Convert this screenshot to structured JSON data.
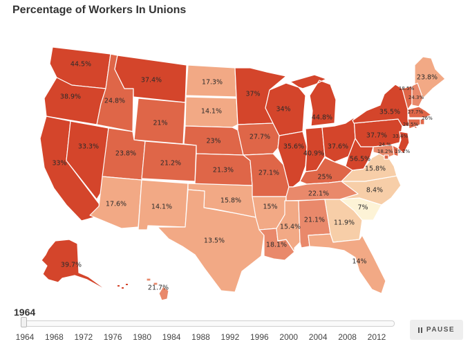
{
  "header": {
    "title": "Percentage of Workers In Unions"
  },
  "slider": {
    "current_year": "1964",
    "selected_fraction": 0,
    "ticks": [
      "1964",
      "1968",
      "1972",
      "1976",
      "1980",
      "1984",
      "1988",
      "1992",
      "1996",
      "2000",
      "2004",
      "2008",
      "2012"
    ]
  },
  "controls": {
    "pause_label": "PAUSE",
    "pause_icon": "pause-icon"
  },
  "legend_colors": {
    "very_high": "#d4452b",
    "high": "#df6648",
    "mid": "#e9896b",
    "low": "#f2a985",
    "very_low": "#f7cea8",
    "lowest": "#fdf3d6"
  },
  "states": [
    {
      "id": "WA",
      "value": "44.5%"
    },
    {
      "id": "OR",
      "value": "38.9%"
    },
    {
      "id": "CA",
      "value": "33%"
    },
    {
      "id": "NV",
      "value": "33.3%"
    },
    {
      "id": "ID",
      "value": "24.8%"
    },
    {
      "id": "MT",
      "value": "37.4%"
    },
    {
      "id": "WY",
      "value": "21%"
    },
    {
      "id": "UT",
      "value": "23.8%"
    },
    {
      "id": "CO",
      "value": "21.2%"
    },
    {
      "id": "AZ",
      "value": "17.6%"
    },
    {
      "id": "NM",
      "value": "14.1%"
    },
    {
      "id": "ND",
      "value": "17.3%"
    },
    {
      "id": "SD",
      "value": "14.1%"
    },
    {
      "id": "NE",
      "value": "23%"
    },
    {
      "id": "KS",
      "value": "21.3%"
    },
    {
      "id": "OK",
      "value": "15.8%"
    },
    {
      "id": "TX",
      "value": "13.5%"
    },
    {
      "id": "MN",
      "value": "37%"
    },
    {
      "id": "IA",
      "value": "27.7%"
    },
    {
      "id": "MO",
      "value": "27.1%"
    },
    {
      "id": "AR",
      "value": "15%"
    },
    {
      "id": "LA",
      "value": "18.1%"
    },
    {
      "id": "WI",
      "value": "34%"
    },
    {
      "id": "IL",
      "value": "35.6%"
    },
    {
      "id": "MI",
      "value": "44.8%"
    },
    {
      "id": "IN",
      "value": "40.9%"
    },
    {
      "id": "OH",
      "value": "37.6%"
    },
    {
      "id": "KY",
      "value": "25%"
    },
    {
      "id": "TN",
      "value": "22.1%"
    },
    {
      "id": "MS",
      "value": "15.4%"
    },
    {
      "id": "AL",
      "value": "21.1%"
    },
    {
      "id": "GA",
      "value": "11.9%"
    },
    {
      "id": "FL",
      "value": "14%"
    },
    {
      "id": "SC",
      "value": "7%"
    },
    {
      "id": "NC",
      "value": "8.4%"
    },
    {
      "id": "VA",
      "value": "15.8%"
    },
    {
      "id": "WV",
      "value": "56.5%"
    },
    {
      "id": "PA",
      "value": "37.7%"
    },
    {
      "id": "NY",
      "value": "35.5%"
    },
    {
      "id": "ME",
      "value": "23.8%"
    },
    {
      "id": "VT",
      "value": "18.5%"
    },
    {
      "id": "NH",
      "value": "24.3%"
    },
    {
      "id": "MA",
      "value": "27.7%"
    },
    {
      "id": "RI",
      "value": "26%"
    },
    {
      "id": "CT",
      "value": "28.5%"
    },
    {
      "id": "NJ",
      "value": "33.4%"
    },
    {
      "id": "DE",
      "value": "24.%"
    },
    {
      "id": "MD",
      "value": "18.2%"
    },
    {
      "id": "DC",
      "value": "19.2%"
    },
    {
      "id": "AK",
      "value": "39.7%"
    },
    {
      "id": "HI",
      "value": "21.7%"
    }
  ]
}
